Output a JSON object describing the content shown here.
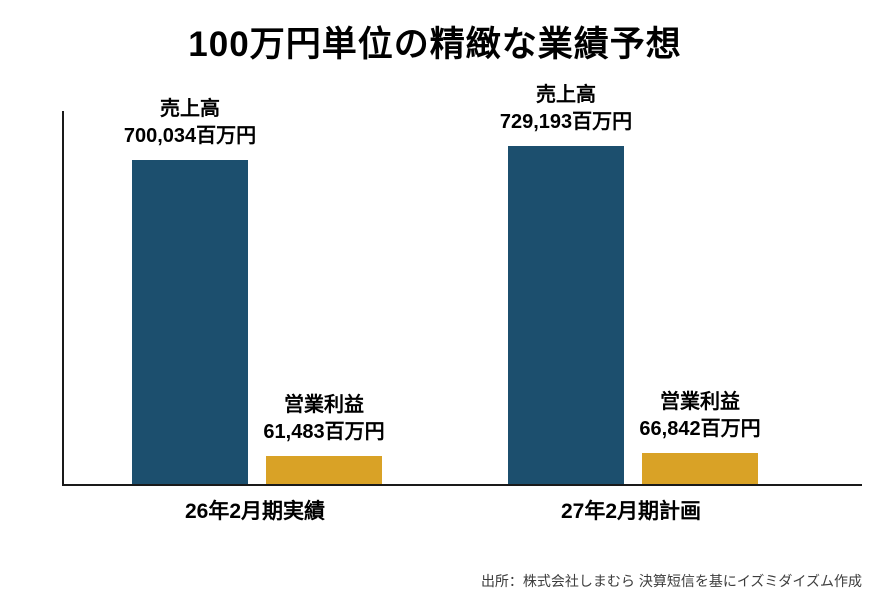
{
  "title": "100万円単位の精緻な業績予想",
  "source_note": "出所：株式会社しまむら 決算短信を基にイズミダイズム作成",
  "colors": {
    "revenue": "#1c4f6e",
    "profit": "#d9a226",
    "axis": "#1a1a1a",
    "background": "#ffffff"
  },
  "chart_data": {
    "type": "bar",
    "title": "100万円単位の精緻な業績予想",
    "unit": "百万円",
    "grid": false,
    "legend_position": "none",
    "ylim": [
      0,
      760000
    ],
    "categories": [
      "26年2月期実績",
      "27年2月期計画"
    ],
    "series": [
      {
        "name": "売上高",
        "values": [
          700034,
          729193
        ]
      },
      {
        "name": "営業利益",
        "values": [
          61483,
          66842
        ]
      }
    ],
    "groups": [
      {
        "category": "26年2月期実績",
        "bars": [
          {
            "name": "売上高",
            "value": 700034,
            "value_label": "700,034百万円",
            "color_key": "revenue"
          },
          {
            "name": "営業利益",
            "value": 61483,
            "value_label": "61,483百万円",
            "color_key": "profit"
          }
        ]
      },
      {
        "category": "27年2月期計画",
        "bars": [
          {
            "name": "売上高",
            "value": 729193,
            "value_label": "729,193百万円",
            "color_key": "revenue"
          },
          {
            "name": "営業利益",
            "value": 66842,
            "value_label": "66,842百万円",
            "color_key": "profit"
          }
        ]
      }
    ]
  }
}
